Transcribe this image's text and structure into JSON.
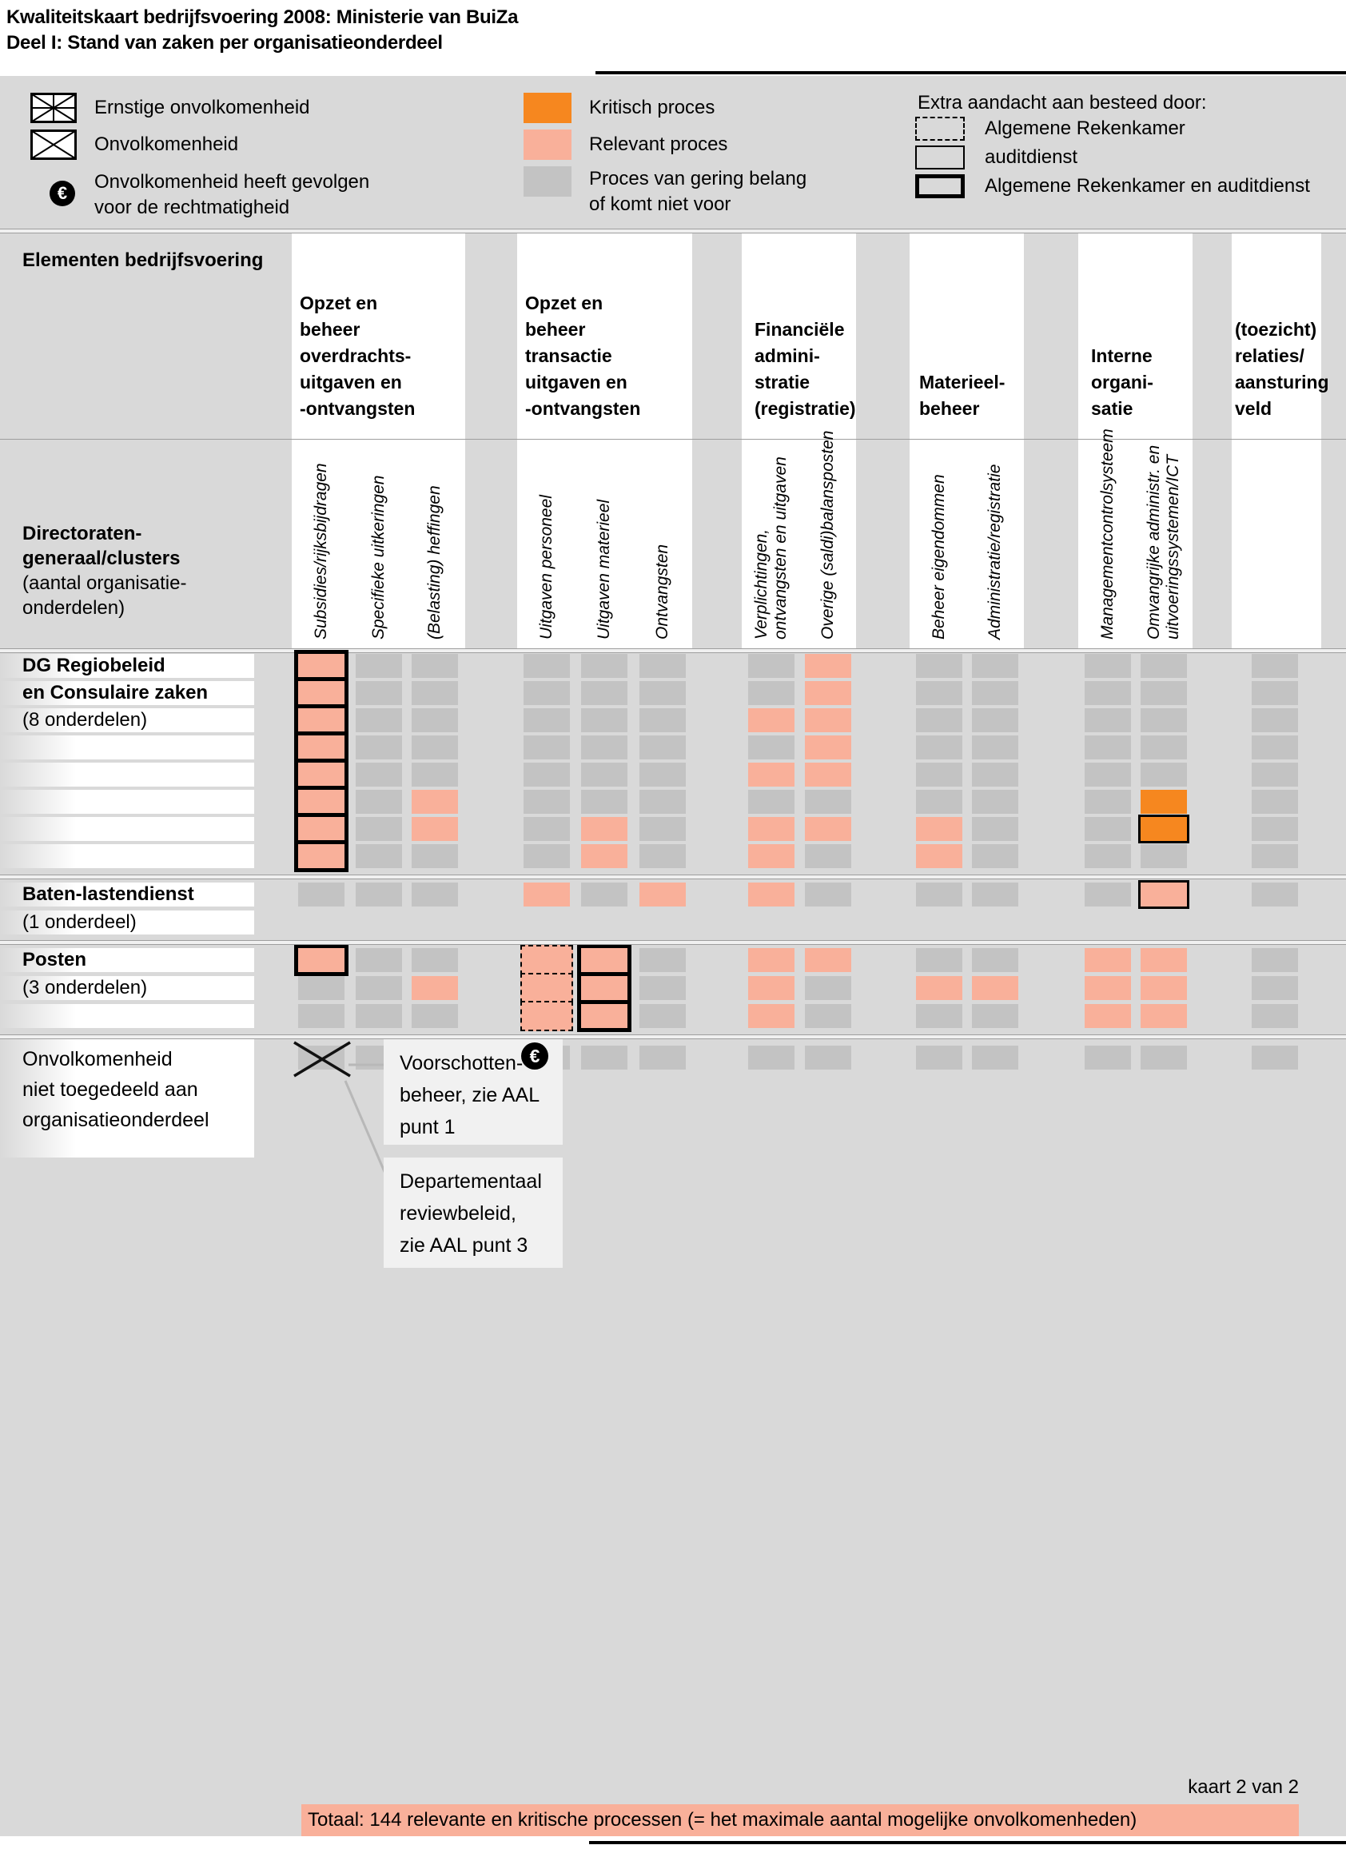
{
  "title": {
    "text": "Kwaliteitskaart bedrijfsvoering 2008: Ministerie van BuiZa\nDeel I: Stand van zaken per organisatieonderdeel"
  },
  "colors": {
    "background": "#d9d9d9",
    "process_minor": "#c3c3c3",
    "process_relevant": "#f9b09a",
    "process_critical": "#f6871f",
    "callout_bg": "#f1f1f1",
    "banner_bg": "#f9b09a"
  },
  "legend": {
    "severity": [
      {
        "icon": "box-star-icon",
        "label": "Ernstige onvolkomenheid"
      },
      {
        "icon": "box-x-icon",
        "label": "Onvolkomenheid"
      },
      {
        "icon": "euro-icon",
        "label": "Onvolkomenheid heeft gevolgen\nvoor de rechtmatigheid"
      }
    ],
    "process": [
      {
        "code": "k",
        "label": "Kritisch proces"
      },
      {
        "code": "r",
        "label": "Relevant proces"
      },
      {
        "code": "g",
        "label": "Proces van gering belang\nof komt niet voor"
      }
    ],
    "attention_header": "Extra aandacht aan besteed door:",
    "attention": [
      {
        "style": "dashed",
        "label": "Algemene Rekenkamer"
      },
      {
        "style": "thin",
        "label": "auditdienst"
      },
      {
        "style": "thick",
        "label": "Algemene Rekenkamer en auditdienst"
      }
    ]
  },
  "header": {
    "corner": "Elementen bedrijfsvoering",
    "row_header_bold": "Directoraten-\ngeneraal/clusters",
    "row_header_normal": "(aantal organisatie-\n onderdelen)",
    "groups": [
      "Opzet en\nbeheer\noverdrachts-\nuitgaven en\n-ontvangsten",
      "Opzet en\nbeheer\ntransactie\nuitgaven en\n-ontvangsten",
      "Financiële\nadmini-\nstratie\n(registratie)",
      "Materieel-\nbeheer",
      "Interne\norgani-\nsatie",
      "(toezicht)\nrelaties/\naansturing\nveld"
    ]
  },
  "chart_data": {
    "type": "heatmap",
    "title": "Kwaliteitskaart bedrijfsvoering 2008: Ministerie van BuiZa",
    "subtitle": "Deel I: Stand van zaken per organisatieonderdeel",
    "cell_codes": {
      "g": "proces van gering belang of komt niet voor",
      "r": "relevant proces",
      "k": "kritisch proces",
      "+t": "extra aandacht: Algemene Rekenkamer en auditdienst",
      "+n": "extra aandacht: auditdienst",
      "+d": "extra aandacht: Algemene Rekenkamer",
      "x": "onvolkomenheid niet toegedeeld aan organisatieonderdeel"
    },
    "columns": [
      "Subsidies/rijksbijdragen",
      "Specifieke uitkeringen",
      "(Belasting) heffingen",
      "Uitgaven personeel",
      "Uitgaven materieel",
      "Ontvangsten",
      "Verplichtingen,\nontvangsten en uitgaven",
      "Overige (saldi)balansposten",
      "Beheer eigendommen",
      "Administratie/registratie",
      "Managementcontrolsysteem",
      "Omvangrijke administr. en\nuitvoeringssystemen/ICT",
      ""
    ],
    "sections": [
      {
        "label_lines": [
          {
            "text": "DG Regiobeleid",
            "bold": true
          },
          {
            "text": "en Consulaire zaken",
            "bold": true
          },
          {
            "text": "(8 onderdelen)",
            "bold": false
          },
          {
            "text": "",
            "bold": false
          },
          {
            "text": "",
            "bold": false
          },
          {
            "text": "",
            "bold": false
          },
          {
            "text": "",
            "bold": false
          },
          {
            "text": "",
            "bold": false
          }
        ],
        "rows": [
          [
            "r+t",
            "g",
            "g",
            "g",
            "g",
            "g",
            "g",
            "r",
            "g",
            "g",
            "g",
            "g",
            "g"
          ],
          [
            "r+t",
            "g",
            "g",
            "g",
            "g",
            "g",
            "g",
            "r",
            "g",
            "g",
            "g",
            "g",
            "g"
          ],
          [
            "r+t",
            "g",
            "g",
            "g",
            "g",
            "g",
            "r",
            "r",
            "g",
            "g",
            "g",
            "g",
            "g"
          ],
          [
            "r+t",
            "g",
            "g",
            "g",
            "g",
            "g",
            "g",
            "r",
            "g",
            "g",
            "g",
            "g",
            "g"
          ],
          [
            "r+t",
            "g",
            "g",
            "g",
            "g",
            "g",
            "r",
            "r",
            "g",
            "g",
            "g",
            "g",
            "g"
          ],
          [
            "r+t",
            "g",
            "r",
            "g",
            "g",
            "g",
            "g",
            "g",
            "g",
            "g",
            "g",
            "k",
            "g"
          ],
          [
            "r+t",
            "g",
            "r",
            "g",
            "r",
            "g",
            "r",
            "r",
            "r",
            "g",
            "g",
            "k+n",
            "g"
          ],
          [
            "r+t",
            "g",
            "g",
            "g",
            "r",
            "g",
            "r",
            "g",
            "r",
            "g",
            "g",
            "g",
            "g"
          ]
        ]
      },
      {
        "label_lines": [
          {
            "text": "Baten-lastendienst",
            "bold": true
          },
          {
            "text": "(1 onderdeel)",
            "bold": false
          }
        ],
        "rows": [
          [
            "g",
            "g",
            "g",
            "r",
            "g",
            "r",
            "r",
            "g",
            "g",
            "g",
            "g",
            "r+n",
            "g"
          ]
        ]
      },
      {
        "label_lines": [
          {
            "text": "Posten",
            "bold": true
          },
          {
            "text": "(3 onderdelen)",
            "bold": false
          },
          {
            "text": "",
            "bold": false
          }
        ],
        "rows": [
          [
            "r+t",
            "g",
            "g",
            "r+d",
            "r+t",
            "g",
            "r",
            "r",
            "g",
            "g",
            "r",
            "r",
            "g"
          ],
          [
            "g",
            "g",
            "r",
            "r+d",
            "r+t",
            "g",
            "r",
            "g",
            "r",
            "r",
            "r",
            "r",
            "g"
          ],
          [
            "g",
            "g",
            "g",
            "r+d",
            "r+t",
            "g",
            "r",
            "g",
            "g",
            "g",
            "r",
            "r",
            "g"
          ]
        ]
      }
    ],
    "unassigned": {
      "label": "Onvolkomenheid\nniet toegedeeld aan\norganisatieonderdeel",
      "row": [
        "x",
        "g",
        "g",
        "g",
        "g",
        "g",
        "g",
        "g",
        "g",
        "g",
        "g",
        "g",
        "g"
      ],
      "callouts": [
        {
          "text": "Voorschotten-\nbeheer, zie AAL\npunt 1",
          "euro_icon": true
        },
        {
          "text": "Departementaal\nreviewbeleid,\nzie AAL punt 3",
          "euro_icon": false
        }
      ]
    }
  },
  "footer": {
    "page_label": "kaart 2 van 2",
    "total": "Totaal: 144 relevante en kritische processen (= het maximale aantal mogelijke onvolkomenheden)"
  }
}
